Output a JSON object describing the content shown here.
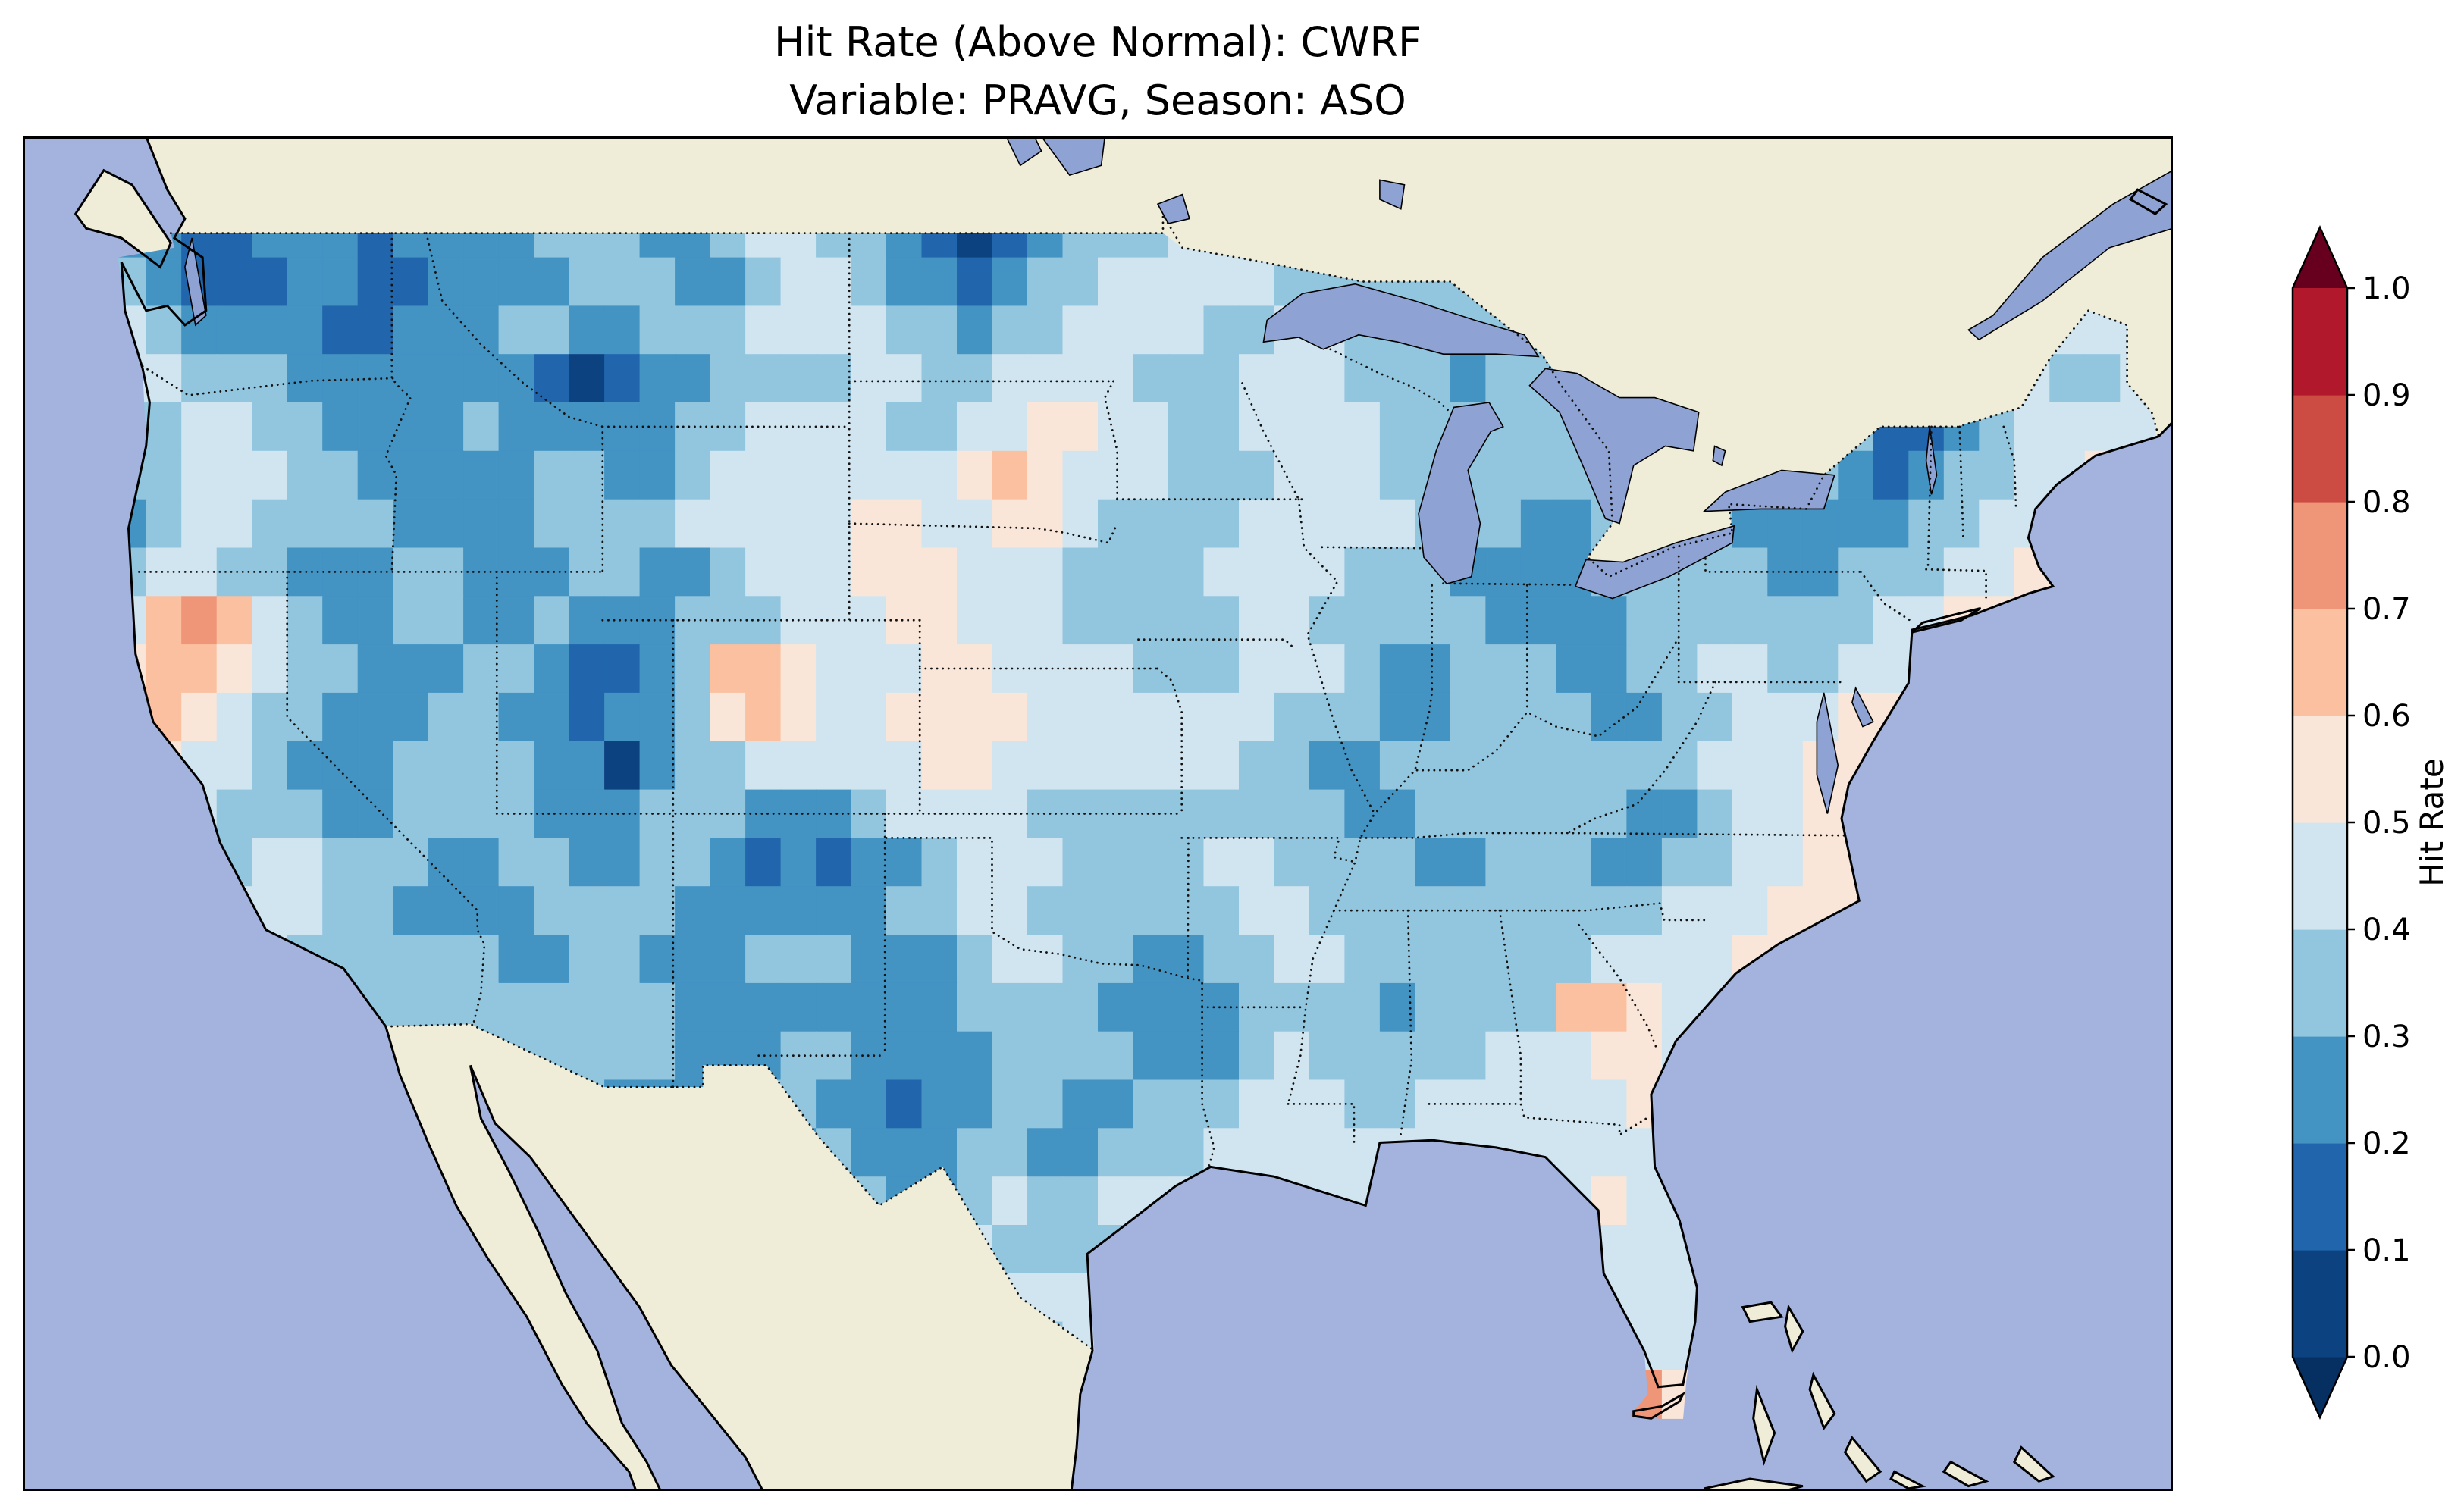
{
  "figure": {
    "title_line1": "Hit Rate (Above Normal): CWRF",
    "title_line2": "Variable: PRAVG, Season: ASO"
  },
  "colorbar": {
    "label": "Hit Rate",
    "tick_labels_bottom_to_top": [
      "0.0",
      "0.1",
      "0.2",
      "0.3",
      "0.4",
      "0.5",
      "0.6",
      "0.7",
      "0.8",
      "0.9",
      "1.0"
    ],
    "bin_colors_low_to_high": [
      "#0d4281",
      "#2166ac",
      "#4393c3",
      "#92c5de",
      "#d1e5f0",
      "#f9e6d8",
      "#fbc0a0",
      "#ee9677",
      "#cc4c43",
      "#b2182b"
    ],
    "under_color": "#053061",
    "over_color": "#67001f"
  },
  "map": {
    "ocean_color": "#a3b3de",
    "land_color": "#efecd8",
    "lake_color": "#8fa2d4",
    "coastline_color": "#000000",
    "border_line_style": "dotted"
  },
  "chart_data": {
    "type": "heatmap",
    "title": "Hit Rate (Above Normal): CWRF",
    "subtitle": "Variable: PRAVG, Season: ASO",
    "colorbar_label": "Hit Rate",
    "value_range": [
      0.0,
      1.0
    ],
    "colorbar_extend": "both",
    "colormap": "RdBu_r (dark blue = low hit rate, white = 0.5, dark red = high hit rate)",
    "region": "Contiguous United States, cells clipped to CONUS boundary",
    "map_extent": {
      "lon": [
        -127.5,
        -66.5
      ],
      "lat": [
        23.0,
        51.0
      ]
    },
    "grid": {
      "lon_west_edge": -125,
      "lon_step_deg": 1,
      "lat_north_edge": 49.5,
      "lat_step_deg": -1,
      "n_cols": 58,
      "n_rows": 25,
      "encoding": "each digit d encodes hit-rate bin [d/10,(d+1)/10); rows run north to south",
      "rows": [
        "2211222122223332234433210123334433333333333332233333444433",
        "3211122112222333223443221233444443333333333222332222344443",
        "4322221122233223334444332334444334433333332233322212234444",
        "4433322222221012233334433444433344433323333322333322344334",
        "3344332222322222334444334455443344443333333333223311234444",
        "3344433222223322344444445654443334443333333332233212334454",
        "2344333322223333444445544554333344444333223333222223344554",
        "3443322233222332234445554443333444433322223333322333445555",
        "4676432233223222333444554443333344333332222333333344555555",
        "5665433222332112366544455444433344432233322334433444555555",
        "5654332223322122356544555544444443332233332233444555555555",
        "5544322233332202334444455444444433223333333334445555555555",
        "4443332233332223332223444433333333322333333223445555555555",
        "4433443332233223321212234443333443333223332233445555555555",
        "4444443322223333222222334433333344333333333344455555555555",
        "5544433333322332223332223443322334433333334444555555555555",
        "4444433333333333222222223333222233332333366544555555555555",
        "4444333333333333222332222333322234333334445544555555555555",
        "4444333333333322223322122332233344433444444554455555555555",
        "4444433333333332222232223322333444444444444455445555555555",
        "4444443333333333322233223433444444444444445444455555555555",
        "4444444333333333333333344333344444444444444444445555555555",
        "4444444444333333333333333444444444444444444444555555555555",
        "4444444444444444444444444434444444444444444445555555555555",
        "4444444444444444444444444444444444444444444755555555555555"
      ]
    }
  }
}
